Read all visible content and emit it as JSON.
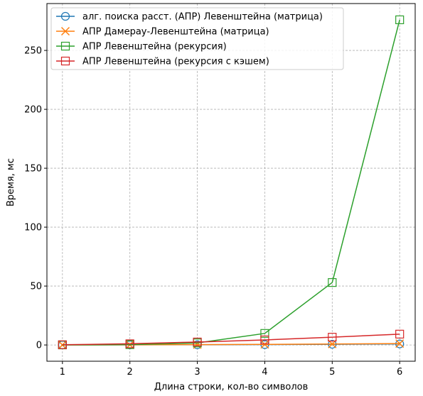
{
  "chart_data": {
    "type": "line",
    "title": "",
    "xlabel": "Длина строки, кол-во символов",
    "ylabel": "Время, мс",
    "x": [
      1,
      2,
      3,
      4,
      5,
      6
    ],
    "xlim": [
      0.77,
      6.23
    ],
    "ylim": [
      -13.8,
      289.8
    ],
    "xticks": [
      1,
      2,
      3,
      4,
      5,
      6
    ],
    "yticks": [
      0,
      50,
      100,
      150,
      200,
      250
    ],
    "grid": true,
    "legend_position": "top-left",
    "series": [
      {
        "name": "алг. поиска расст. (АПР) Левенштейна (матрица)",
        "color": "#1f77b4",
        "marker": "circle",
        "values": [
          0.02,
          0.1,
          0.2,
          0.35,
          0.6,
          0.9
        ]
      },
      {
        "name": "АПР Дамерау-Левенштейна (матрица)",
        "color": "#ff7f0e",
        "marker": "x",
        "values": [
          0.03,
          0.15,
          0.3,
          0.5,
          0.8,
          1.2
        ]
      },
      {
        "name": "АПР Левенштейна (рекурсия)",
        "color": "#2ca02c",
        "marker": "square",
        "values": [
          0.05,
          0.3,
          1.7,
          9.8,
          53,
          276
        ]
      },
      {
        "name": "АПР Левенштейна (рекурсия с кэшем)",
        "color": "#d62728",
        "marker": "square",
        "values": [
          0.2,
          1.0,
          2.5,
          4.3,
          6.6,
          9.2
        ]
      }
    ]
  }
}
